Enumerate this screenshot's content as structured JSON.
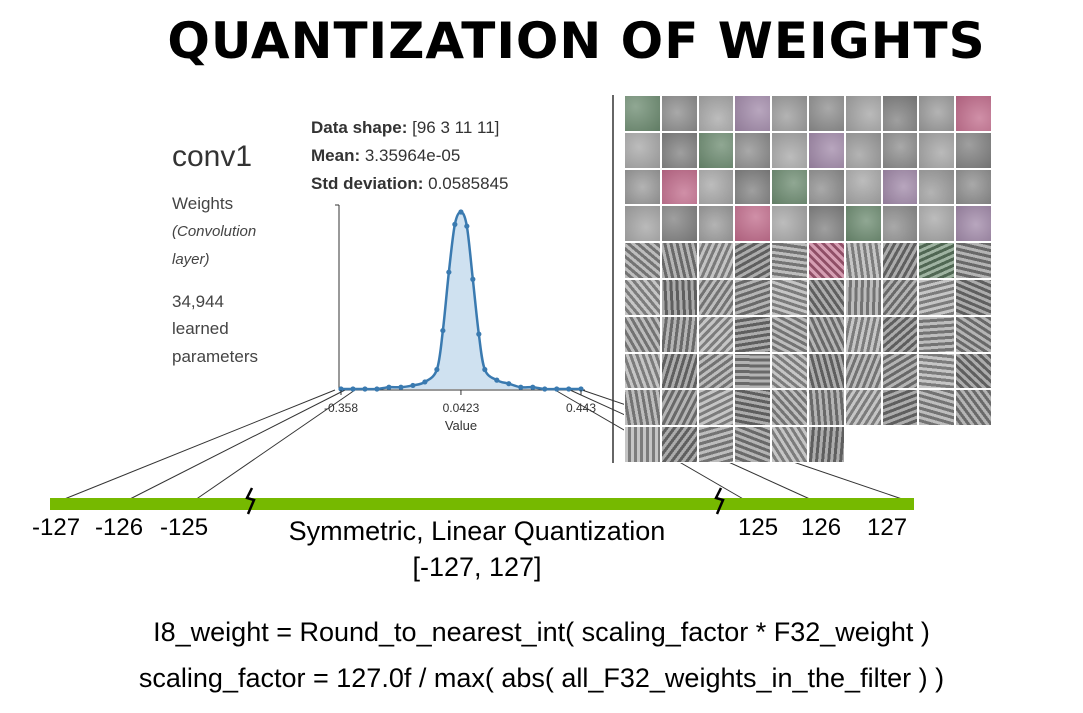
{
  "title": "QUANTIZATION OF WEIGHTS",
  "layer": {
    "name": "conv1",
    "kind": "Weights",
    "kind_detail_1": "(Convolution",
    "kind_detail_2": "layer)",
    "param_count": "34,944",
    "param_word_1": "learned",
    "param_word_2": "parameters"
  },
  "stats": {
    "shape_label": "Data shape:",
    "shape_value": " [96 3 11 11]",
    "mean_label": "Mean:",
    "mean_value": " 3.35964e-05",
    "std_label": "Std deviation:",
    "std_value": " 0.0585845"
  },
  "chart_data": {
    "type": "area",
    "xlabel": "Value",
    "x_ticks": [
      "-0.358",
      "0.0423",
      "0.443"
    ],
    "xlim": [
      -0.358,
      0.443
    ],
    "x": [
      -0.358,
      -0.318,
      -0.278,
      -0.238,
      -0.198,
      -0.158,
      -0.118,
      -0.078,
      -0.038,
      -0.018,
      0.002,
      0.022,
      0.0423,
      0.062,
      0.082,
      0.102,
      0.122,
      0.162,
      0.202,
      0.242,
      0.282,
      0.322,
      0.362,
      0.402,
      0.443
    ],
    "y": [
      0.0,
      0.0,
      0.0,
      0.0,
      0.01,
      0.01,
      0.02,
      0.04,
      0.11,
      0.33,
      0.66,
      0.93,
      1.0,
      0.92,
      0.62,
      0.31,
      0.11,
      0.05,
      0.03,
      0.01,
      0.01,
      0.0,
      0.0,
      0.0,
      0.0
    ],
    "grid": false
  },
  "filters_colors": [
    "#6b8a6f",
    "#8d8d8d",
    "#7d9a7f",
    "#a088a8",
    "#9a9a9a",
    "#8a9ab0",
    "#a3a3a3",
    "#b07ab0",
    "#8f8f8f",
    "#c06a8a",
    "#7aa07a",
    "#6a7ab0"
  ],
  "quantization": {
    "left_labels": [
      "-127",
      "-126",
      "-125"
    ],
    "right_labels": [
      "125",
      "126",
      "127"
    ],
    "title": "Symmetric, Linear Quantization",
    "range": "[-127, 127]"
  },
  "formulas": {
    "line1": "I8_weight = Round_to_nearest_int( scaling_factor * F32_weight )",
    "line2": "scaling_factor = 127.0f / max( abs( all_F32_weights_in_the_filter ) )"
  }
}
